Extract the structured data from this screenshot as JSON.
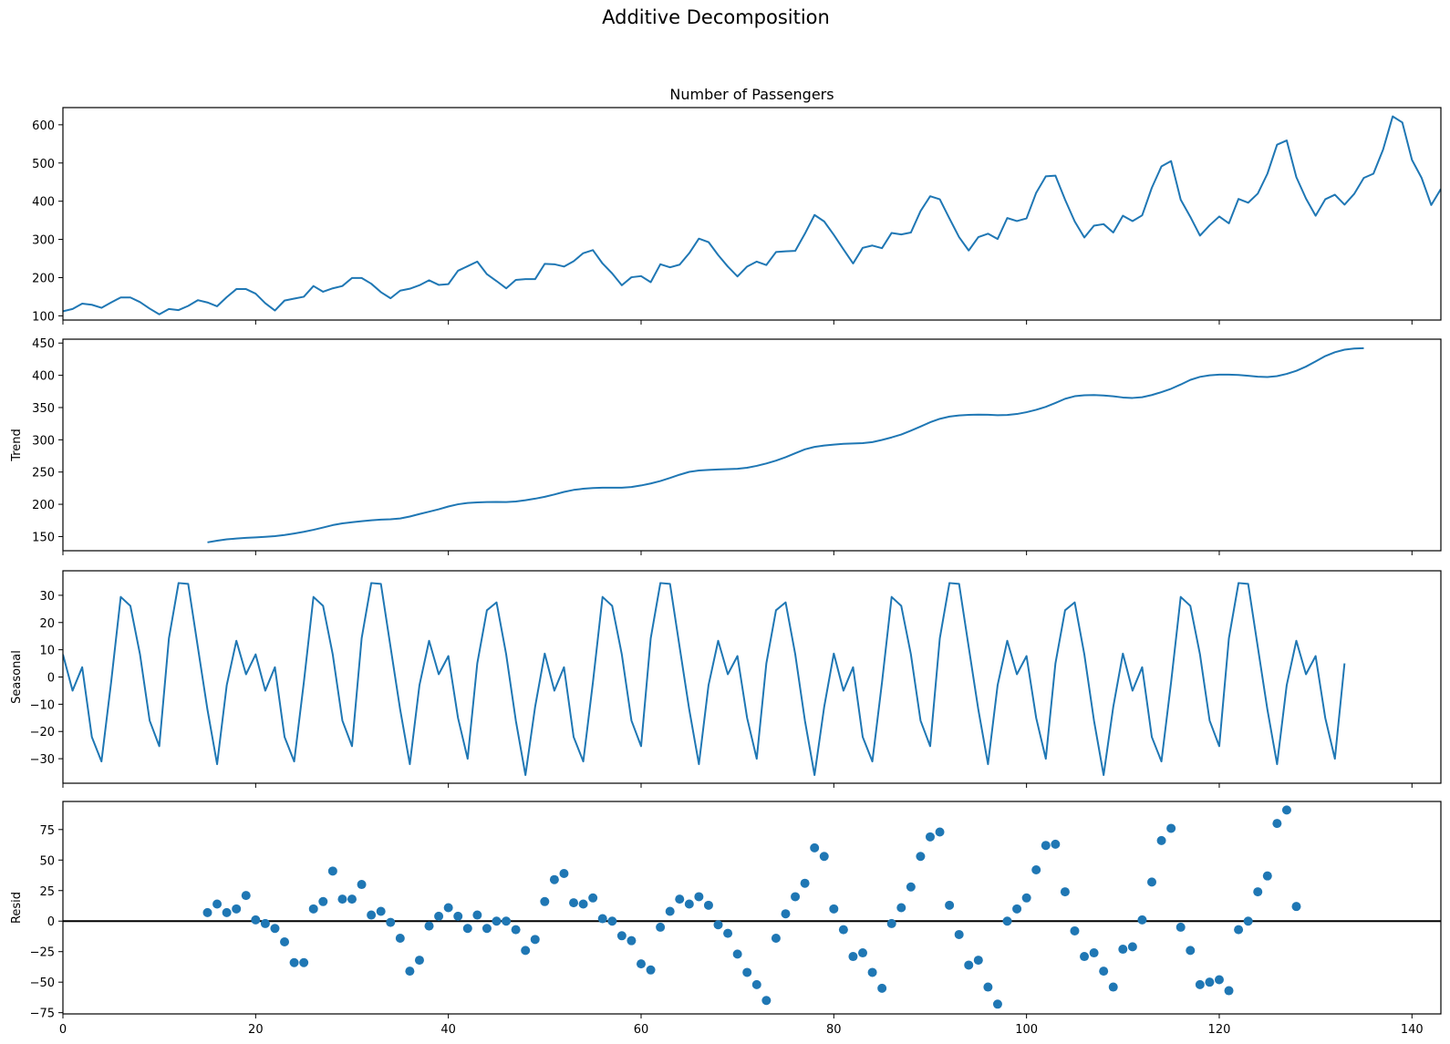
{
  "figure": {
    "suptitle": "Additive Decomposition",
    "xticks": [
      "0",
      "20",
      "40",
      "60",
      "80",
      "100",
      "120",
      "140"
    ],
    "line_color": "#1f77b4",
    "zero_line_color": "#000000"
  },
  "chart_data": [
    {
      "type": "line",
      "title": "Number of Passengers",
      "ylabel": "",
      "xlim": [
        0,
        143
      ],
      "ylim": [
        89,
        645
      ],
      "yticks": [
        "100",
        "200",
        "300",
        "400",
        "500",
        "600"
      ],
      "x_start": 0,
      "values": [
        112,
        118,
        132,
        129,
        121,
        135,
        148,
        148,
        136,
        119,
        104,
        118,
        115,
        126,
        141,
        135,
        125,
        149,
        170,
        170,
        158,
        133,
        114,
        140,
        145,
        150,
        178,
        163,
        172,
        178,
        199,
        199,
        184,
        162,
        146,
        166,
        171,
        180,
        193,
        181,
        183,
        218,
        230,
        242,
        209,
        191,
        172,
        194,
        196,
        196,
        236,
        235,
        229,
        243,
        264,
        272,
        237,
        211,
        180,
        201,
        204,
        188,
        235,
        227,
        234,
        264,
        302,
        293,
        259,
        229,
        203,
        229,
        242,
        233,
        267,
        269,
        270,
        315,
        364,
        347,
        312,
        274,
        237,
        278,
        284,
        277,
        317,
        313,
        318,
        374,
        413,
        405,
        355,
        306,
        271,
        306,
        315,
        301,
        356,
        348,
        355,
        422,
        465,
        467,
        404,
        347,
        305,
        336,
        340,
        318,
        362,
        348,
        363,
        435,
        491,
        505,
        404,
        359,
        310,
        337,
        360,
        342,
        406,
        396,
        420,
        472,
        548,
        559,
        463,
        407,
        362,
        405,
        417,
        391,
        419,
        461,
        472,
        535,
        622,
        606,
        508,
        461,
        390,
        432
      ]
    },
    {
      "type": "line",
      "title": "",
      "ylabel": "Trend",
      "xlim": [
        0,
        143
      ],
      "ylim": [
        128,
        456
      ],
      "yticks": [
        "150",
        "200",
        "250",
        "300",
        "350",
        "400",
        "450"
      ],
      "x_start": 15,
      "values": [
        141.0,
        143.6,
        145.6,
        146.9,
        147.9,
        148.7,
        149.5,
        150.6,
        152.4,
        154.7,
        157.3,
        160.4,
        164.0,
        167.7,
        170.4,
        172.2,
        173.8,
        175.2,
        176.2,
        176.7,
        178.0,
        181.0,
        184.9,
        188.5,
        192.2,
        196.6,
        200.0,
        202.0,
        203.0,
        203.5,
        203.7,
        203.5,
        204.4,
        206.3,
        208.7,
        211.6,
        215.2,
        219.2,
        222.3,
        224.1,
        225.2,
        225.7,
        225.8,
        225.8,
        226.8,
        229.2,
        232.3,
        236.1,
        240.8,
        245.9,
        250.3,
        252.4,
        253.3,
        254.0,
        254.5,
        255.1,
        256.7,
        259.6,
        263.3,
        267.7,
        273.0,
        279.2,
        285.2,
        289.0,
        291.1,
        292.6,
        293.7,
        294.3,
        294.8,
        296.4,
        299.8,
        303.7,
        308.2,
        314.2,
        320.5,
        327.2,
        332.5,
        336.0,
        337.8,
        338.7,
        339.1,
        338.8,
        338.1,
        338.5,
        340.0,
        342.8,
        346.5,
        351.1,
        357.1,
        363.6,
        367.6,
        369.1,
        369.4,
        368.7,
        367.4,
        365.6,
        364.9,
        366.0,
        369.4,
        373.9,
        379.1,
        385.7,
        392.9,
        397.6,
        400.0,
        401.0,
        401.0,
        400.5,
        399.3,
        397.9,
        397.3,
        398.7,
        402.2,
        407.0,
        413.5,
        421.5,
        429.8,
        435.8,
        439.7,
        441.5,
        442.1
      ]
    },
    {
      "type": "line",
      "title": "",
      "ylabel": "Seasonal",
      "xlim": [
        0,
        143
      ],
      "ylim": [
        -39,
        39
      ],
      "yticks": [
        "−30",
        "−20",
        "−10",
        "0",
        "10",
        "20",
        "30"
      ],
      "x_start": 0,
      "values": [
        8.3,
        -5.0,
        3.6,
        -22.0,
        -31.0,
        -2.0,
        29.4,
        26.1,
        8.3,
        -16.0,
        -25.4,
        14.2,
        34.5,
        34.2,
        11.0,
        -12.0,
        -32.0,
        -3.0,
        13.3,
        1.0,
        8.3,
        -5.0,
        3.6,
        -22.0,
        -31.0,
        -2.0,
        29.4,
        26.1,
        8.3,
        -16.0,
        -25.4,
        14.2,
        34.5,
        34.2,
        11.0,
        -12.0,
        -32.0,
        -3.0,
        13.3,
        1.0,
        7.7,
        -15.0,
        -30.0,
        5.0,
        24.5,
        27.4,
        8.3,
        -16.0,
        -36.0,
        -11.0,
        8.6,
        -5.0,
        3.6,
        -22.0,
        -31.0,
        -2.0,
        29.4,
        26.1,
        8.3,
        -16.0,
        -25.4,
        14.2,
        34.5,
        34.2,
        11.0,
        -12.0,
        -32.0,
        -3.0,
        13.3,
        1.0,
        7.7,
        -15.0,
        -30.0,
        5.0,
        24.5,
        27.4,
        8.3,
        -16.0,
        -36.0,
        -11.0,
        8.6,
        -5.0,
        3.6,
        -22.0,
        -31.0,
        -2.0,
        29.4,
        26.1,
        8.3,
        -16.0,
        -25.4,
        14.2,
        34.5,
        34.2,
        11.0,
        -12.0,
        -32.0,
        -3.0,
        13.3,
        1.0,
        7.7,
        -15.0,
        -30.0,
        5.0,
        24.5,
        27.4,
        8.3,
        -16.0,
        -36.0,
        -11.0,
        8.6,
        -5.0,
        3.6,
        -22.0,
        -31.0,
        -2.0,
        29.4,
        26.1,
        8.3,
        -16.0,
        -25.4,
        14.2,
        34.5,
        34.2,
        11.0,
        -12.0,
        -32.0,
        -3.0,
        13.3,
        1.0,
        7.7,
        -15.0,
        -30.0,
        5.0
      ]
    },
    {
      "type": "scatter",
      "title": "",
      "ylabel": "Resid",
      "xlim": [
        0,
        143
      ],
      "ylim": [
        -76,
        98
      ],
      "yticks": [
        "−75",
        "−50",
        "−25",
        "0",
        "25",
        "50",
        "75"
      ],
      "zero_line": true,
      "x_start": 15,
      "values": [
        7,
        14,
        7,
        10,
        21,
        1,
        -2,
        -6,
        -17,
        -34,
        -34,
        10,
        16,
        41,
        18,
        18,
        30,
        5,
        8,
        -1,
        -14,
        -41,
        -32,
        -4,
        4,
        11,
        4,
        -6,
        5,
        -6,
        0,
        0,
        -7,
        -24,
        -15,
        16,
        34,
        39,
        15,
        14,
        19,
        2,
        0,
        -12,
        -16,
        -35,
        -40,
        -5,
        8,
        18,
        14,
        20,
        13,
        -3,
        -10,
        -27,
        -42,
        -52,
        -65,
        -14,
        6,
        20,
        31,
        60,
        53,
        10,
        -7,
        -29,
        -26,
        -42,
        -55,
        -2,
        11,
        28,
        53,
        69,
        73,
        13,
        -11,
        -36,
        -32,
        -54,
        -68,
        0,
        10,
        19,
        42,
        62,
        63,
        24,
        -8,
        -29,
        -26,
        -41,
        -54,
        -23,
        -21,
        1,
        32,
        66,
        76,
        -5,
        -24,
        -52,
        -50,
        -48,
        -57,
        -7,
        0,
        24,
        37,
        80,
        91,
        12
      ]
    }
  ]
}
